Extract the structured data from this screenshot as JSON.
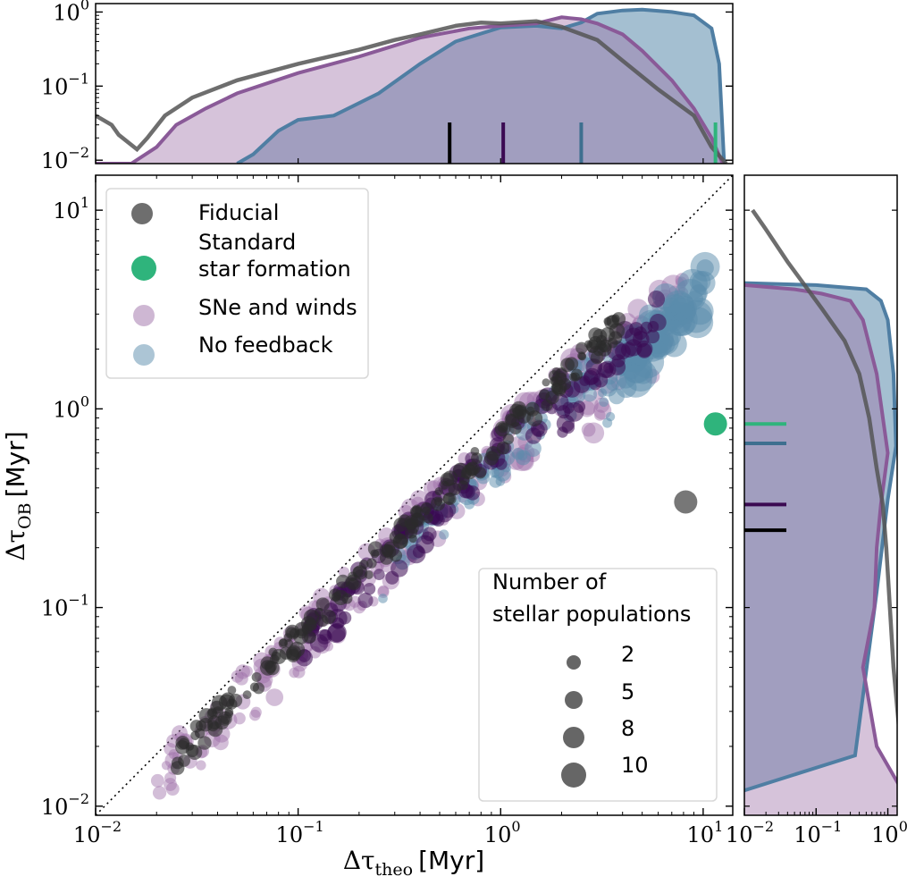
{
  "chart_data": {
    "type": "scatter",
    "xscale": "log",
    "yscale": "log",
    "xlabel_prefix": "Δτ",
    "xlabel_sub": "theo",
    "xlabel_unit": "[Myr]",
    "ylabel_prefix": "Δτ",
    "ylabel_sub": "OB",
    "ylabel_unit": "[Myr]",
    "xlim": [
      0.01,
      14
    ],
    "ylim": [
      0.009,
      15
    ],
    "x_ticks": [
      {
        "value": 0.01,
        "label": "10",
        "exp": "−2"
      },
      {
        "value": 0.1,
        "label": "10",
        "exp": "−1"
      },
      {
        "value": 1,
        "label": "10",
        "exp": "0"
      },
      {
        "value": 10,
        "label": "10",
        "exp": "1"
      }
    ],
    "y_ticks": [
      {
        "value": 0.01,
        "label": "10",
        "exp": "−2"
      },
      {
        "value": 0.1,
        "label": "10",
        "exp": "−1"
      },
      {
        "value": 1,
        "label": "10",
        "exp": "0"
      },
      {
        "value": 10,
        "label": "10",
        "exp": "1"
      }
    ],
    "one_to_one_line": true,
    "legend_position": "upper-left",
    "series": [
      {
        "name": "Fiducial",
        "color": "#555555",
        "alpha": 0.6
      },
      {
        "name": "Standard\nstar formation",
        "name_lines": [
          "Standard",
          "star formation"
        ],
        "color": "#2fb47c",
        "alpha": 1.0
      },
      {
        "name": "SNe and winds",
        "color": "#9e6fa8",
        "alpha": 0.45
      },
      {
        "name": "No feedback",
        "color": "#5a8bab",
        "alpha": 0.55
      }
    ],
    "special_points": [
      {
        "series": "Standard star formation",
        "x": 11.5,
        "y": 0.84,
        "n": 5
      },
      {
        "series": "Fiducial",
        "x": 8.2,
        "y": 0.34,
        "n": 5
      }
    ],
    "size_legend": {
      "title_lines": [
        "Number of",
        "stellar populations"
      ],
      "entries": [
        2,
        5,
        8,
        10
      ],
      "entry_labels": [
        "2",
        "5",
        "8",
        "10"
      ]
    },
    "top_marginal": {
      "ylim": [
        0.009,
        1.3
      ],
      "y_ticks": [
        {
          "value": 0.01,
          "label": "10",
          "exp": "−2"
        },
        {
          "value": 0.1,
          "label": "10",
          "exp": "−1"
        },
        {
          "value": 1,
          "label": "10",
          "exp": "0"
        }
      ],
      "medians": [
        {
          "series": "Fiducial",
          "x": 0.56,
          "color": "#000000"
        },
        {
          "series": "SNe and winds",
          "x": 1.03,
          "color": "#3b0a52"
        },
        {
          "series": "No feedback",
          "x": 2.5,
          "color": "#3e6f8f"
        },
        {
          "series": "Standard star formation",
          "x": 11.5,
          "color": "#2fb47c"
        }
      ]
    },
    "right_marginal": {
      "xlim": [
        0.01,
        1.35
      ],
      "x_ticks": [
        {
          "value": 0.01,
          "label": "10",
          "exp": "−2"
        },
        {
          "value": 0.1,
          "label": "10",
          "exp": "−1"
        },
        {
          "value": 1,
          "label": "10",
          "exp": "0"
        }
      ],
      "medians": [
        {
          "series": "Standard star formation",
          "y": 0.84,
          "color": "#2fb47c"
        },
        {
          "series": "No feedback",
          "y": 0.67,
          "color": "#3e6f8f"
        },
        {
          "series": "SNe and winds",
          "y": 0.33,
          "color": "#3b0a52"
        },
        {
          "series": "Fiducial",
          "y": 0.245,
          "color": "#000000"
        }
      ]
    },
    "cumulative_x": [
      {
        "series": "Fiducial",
        "kind": "line",
        "color": "#555555",
        "points": [
          [
            0.01,
            0.04
          ],
          [
            0.012,
            0.03
          ],
          [
            0.013,
            0.022
          ],
          [
            0.016,
            0.014
          ],
          [
            0.018,
            0.02
          ],
          [
            0.022,
            0.04
          ],
          [
            0.03,
            0.07
          ],
          [
            0.05,
            0.12
          ],
          [
            0.1,
            0.2
          ],
          [
            0.2,
            0.31
          ],
          [
            0.3,
            0.42
          ],
          [
            0.4,
            0.5
          ],
          [
            0.6,
            0.65
          ],
          [
            0.8,
            0.72
          ],
          [
            1.0,
            0.7
          ],
          [
            1.5,
            0.75
          ],
          [
            2.0,
            0.63
          ],
          [
            3.0,
            0.42
          ],
          [
            4.0,
            0.22
          ],
          [
            6.0,
            0.09
          ],
          [
            9.0,
            0.04
          ],
          [
            11.0,
            0.015
          ],
          [
            13.0,
            0.009
          ]
        ]
      },
      {
        "series": "SNe and winds",
        "kind": "area",
        "color": "#9e6fa8",
        "points": [
          [
            0.01,
            0.009
          ],
          [
            0.015,
            0.009
          ],
          [
            0.02,
            0.015
          ],
          [
            0.025,
            0.03
          ],
          [
            0.035,
            0.05
          ],
          [
            0.05,
            0.08
          ],
          [
            0.1,
            0.15
          ],
          [
            0.2,
            0.25
          ],
          [
            0.4,
            0.45
          ],
          [
            0.7,
            0.6
          ],
          [
            1.0,
            0.65
          ],
          [
            1.5,
            0.7
          ],
          [
            2.0,
            0.85
          ],
          [
            2.5,
            0.8
          ],
          [
            3.0,
            0.7
          ],
          [
            4.0,
            0.5
          ],
          [
            5.0,
            0.3
          ],
          [
            7.0,
            0.12
          ],
          [
            9.0,
            0.05
          ],
          [
            11.0,
            0.02
          ],
          [
            12.5,
            0.009
          ]
        ]
      },
      {
        "series": "No feedback",
        "kind": "area",
        "color": "#5a8bab",
        "points": [
          [
            0.05,
            0.009
          ],
          [
            0.06,
            0.012
          ],
          [
            0.08,
            0.025
          ],
          [
            0.1,
            0.035
          ],
          [
            0.15,
            0.04
          ],
          [
            0.25,
            0.08
          ],
          [
            0.4,
            0.2
          ],
          [
            0.6,
            0.4
          ],
          [
            1.0,
            0.62
          ],
          [
            1.5,
            0.65
          ],
          [
            2.0,
            0.6
          ],
          [
            2.5,
            0.72
          ],
          [
            3.0,
            0.95
          ],
          [
            4.0,
            1.05
          ],
          [
            5.0,
            1.08
          ],
          [
            7.0,
            1.0
          ],
          [
            9.0,
            0.9
          ],
          [
            11.0,
            0.6
          ],
          [
            12.0,
            0.2
          ],
          [
            12.7,
            0.009
          ]
        ]
      }
    ],
    "cumulative_y": [
      {
        "series": "Fiducial",
        "kind": "line",
        "color": "#555555",
        "points": [
          [
            1.8,
            0.01
          ],
          [
            1.2,
            0.05
          ],
          [
            0.95,
            0.2
          ],
          [
            0.85,
            0.33
          ],
          [
            0.7,
            0.5
          ],
          [
            0.55,
            0.9
          ],
          [
            0.4,
            1.5
          ],
          [
            0.25,
            2.2
          ],
          [
            0.12,
            3.2
          ],
          [
            0.06,
            4.5
          ],
          [
            0.04,
            5.5
          ],
          [
            0.02,
            8.0
          ],
          [
            0.013,
            10.0
          ]
        ]
      },
      {
        "series": "SNe and winds",
        "kind": "area",
        "color": "#9e6fa8",
        "points": [
          [
            2.5,
            0.009
          ],
          [
            0.7,
            0.02
          ],
          [
            0.45,
            0.05
          ],
          [
            0.65,
            0.1
          ],
          [
            0.7,
            0.2
          ],
          [
            0.8,
            0.33
          ],
          [
            1.0,
            0.6
          ],
          [
            0.7,
            1.5
          ],
          [
            0.45,
            2.8
          ],
          [
            0.3,
            3.5
          ],
          [
            0.12,
            3.8
          ],
          [
            0.05,
            4.0
          ],
          [
            0.01,
            4.2
          ]
        ]
      },
      {
        "series": "No feedback",
        "kind": "area",
        "color": "#5a8bab",
        "points": [
          [
            0.01,
            0.012
          ],
          [
            0.35,
            0.018
          ],
          [
            0.7,
            0.12
          ],
          [
            1.0,
            0.35
          ],
          [
            1.3,
            0.65
          ],
          [
            1.2,
            1.5
          ],
          [
            1.0,
            2.8
          ],
          [
            0.8,
            3.5
          ],
          [
            0.5,
            4.0
          ],
          [
            0.1,
            4.2
          ],
          [
            0.01,
            4.3
          ]
        ]
      }
    ]
  }
}
